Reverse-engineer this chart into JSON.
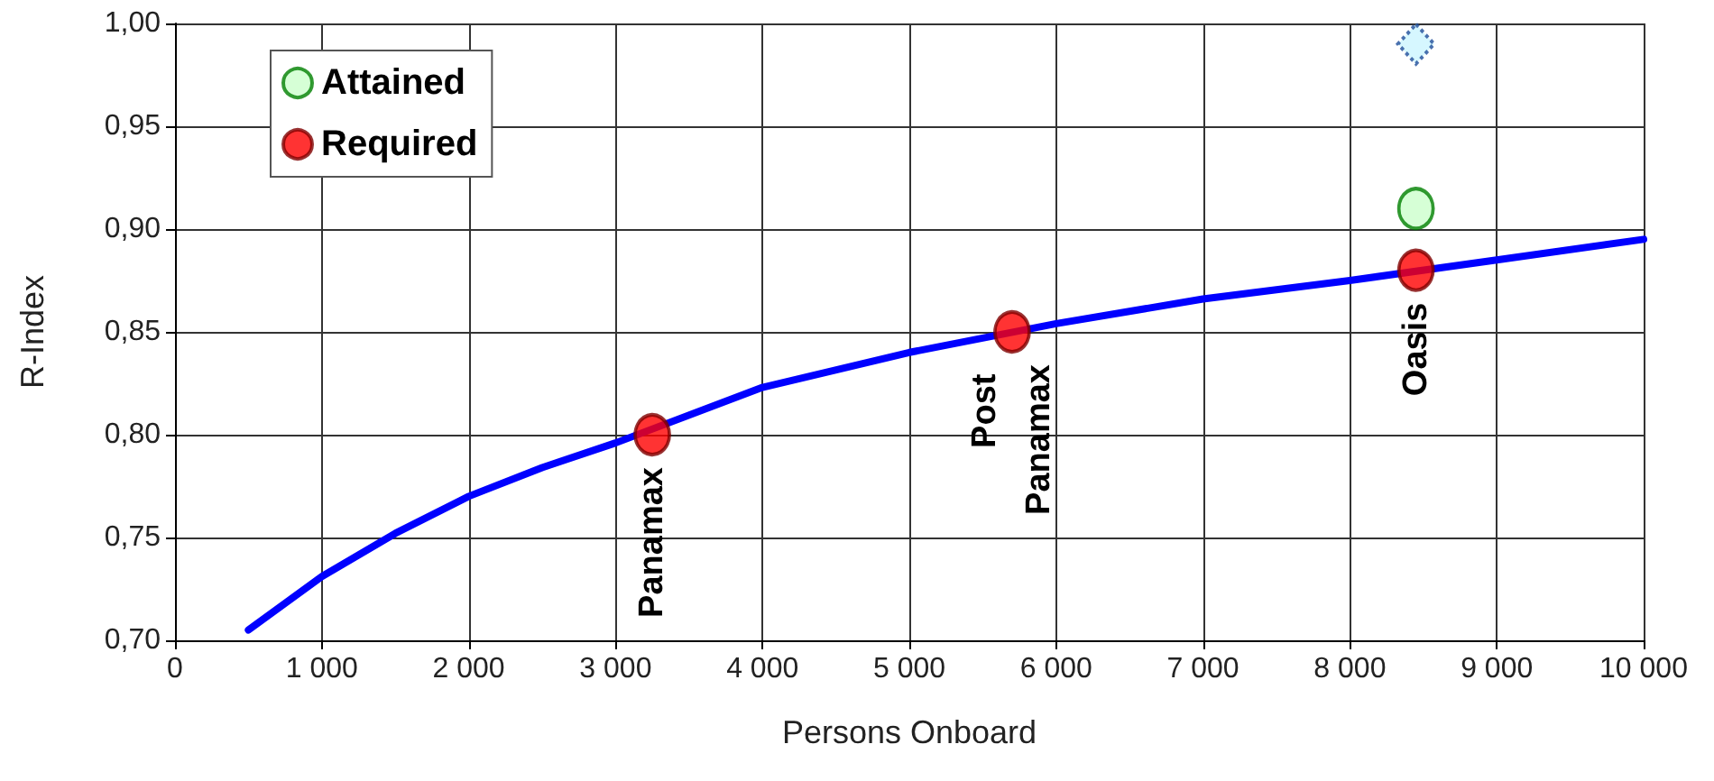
{
  "chart_data": {
    "type": "line",
    "xlabel": "Persons Onboard",
    "ylabel": "R-Index",
    "xlim": [
      0,
      10000
    ],
    "ylim": [
      0.7,
      1.0
    ],
    "xticks": [
      0,
      {
        "value": 1000,
        "label": "1 000"
      },
      {
        "value": 2000,
        "label": "2 000"
      },
      {
        "value": 3000,
        "label": "3 000"
      },
      {
        "value": 4000,
        "label": "4 000"
      },
      {
        "value": 5000,
        "label": "5 000"
      },
      {
        "value": 6000,
        "label": "6 000"
      },
      {
        "value": 7000,
        "label": "7 000"
      },
      {
        "value": 8000,
        "label": "8 000"
      },
      {
        "value": 9000,
        "label": "9 000"
      },
      {
        "value": 10000,
        "label": "10 000"
      }
    ],
    "yticks": [
      {
        "value": 0.7,
        "label": "0,70"
      },
      {
        "value": 0.75,
        "label": "0,75"
      },
      {
        "value": 0.8,
        "label": "0,80"
      },
      {
        "value": 0.85,
        "label": "0,85"
      },
      {
        "value": 0.9,
        "label": "0,90"
      },
      {
        "value": 0.95,
        "label": "0,95"
      },
      {
        "value": 1.0,
        "label": "1,00"
      }
    ],
    "grid": true,
    "legend": "top left",
    "series": [
      {
        "color": "#0000ff",
        "marker": "none",
        "x": [
          500,
          1000,
          1500,
          2000,
          2500,
          3000,
          4000,
          5000,
          6000,
          7000,
          8000,
          9000,
          10000
        ],
        "values": [
          0.705,
          0.731,
          0.752,
          0.77,
          0.784,
          0.796,
          0.823,
          0.84,
          0.854,
          0.866,
          0.875,
          0.885,
          0.895
        ]
      },
      {
        "type": "scatter",
        "name": "Attained",
        "color": "#ccffcc",
        "marker": "circle",
        "x": [
          8450
        ],
        "values": [
          0.91
        ]
      },
      {
        "type": "scatter",
        "name": "Required",
        "color": "#ff0000",
        "marker": "circle",
        "x": [
          3250,
          5700,
          8450
        ],
        "values": [
          0.8,
          0.85,
          0.88
        ]
      },
      {
        "type": "scatter",
        "color": "#ccf5ff",
        "marker": "diamond",
        "x": [
          8450
        ],
        "values": [
          0.99
        ]
      }
    ],
    "annotations": [
      {
        "text": "Panamax",
        "x": 3250,
        "y": 0.8
      },
      {
        "text": "Post Panamax",
        "x": 5700,
        "y": 0.85
      },
      {
        "text": "Oasis",
        "x": 8450,
        "y": 0.88
      }
    ]
  }
}
